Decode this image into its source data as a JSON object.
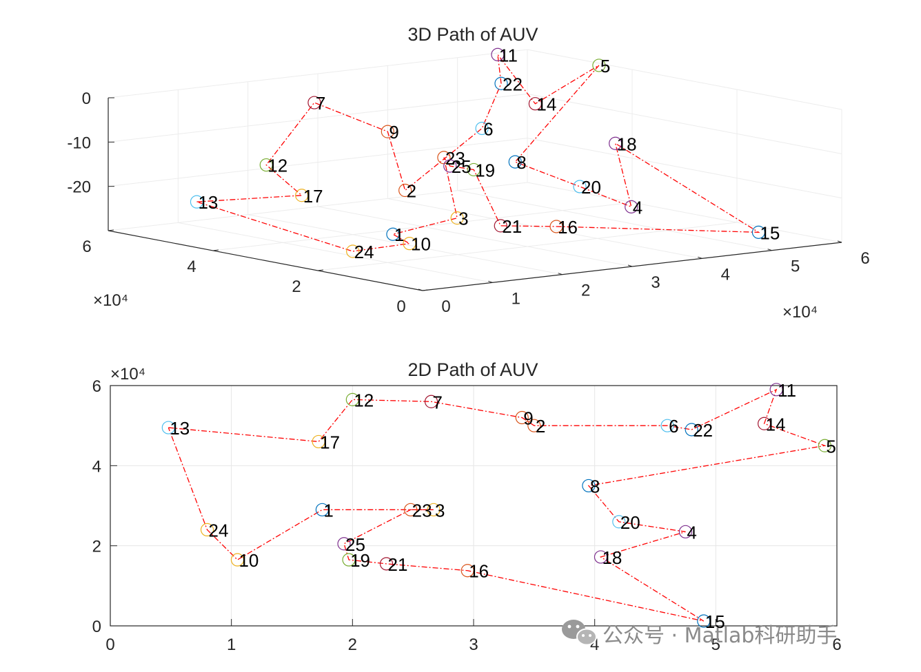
{
  "chart_data": [
    {
      "type": "scatter3d-path",
      "title": "3D Path of AUV",
      "x_exponent_label": "×10⁴",
      "y_exponent_label": "×10⁴",
      "xlim": [
        0,
        60000
      ],
      "ylim": [
        0,
        60000
      ],
      "zlim": [
        -30,
        0
      ],
      "x_ticks": [
        0,
        1,
        2,
        3,
        4,
        5,
        6
      ],
      "y_ticks": [
        0,
        2,
        4,
        6
      ],
      "z_ticks": [
        0,
        -10,
        -20
      ],
      "grid": true,
      "path_color": "#ff0000",
      "points": [
        {
          "label": "1",
          "z": -27
        },
        {
          "label": "2",
          "z": -25
        },
        {
          "label": "3",
          "z": -25
        },
        {
          "label": "4",
          "z": -25
        },
        {
          "label": "5",
          "z": 0
        },
        {
          "label": "6",
          "z": -13
        },
        {
          "label": "7",
          "z": -5
        },
        {
          "label": "8",
          "z": -16
        },
        {
          "label": "9",
          "z": -12
        },
        {
          "label": "10",
          "z": -25
        },
        {
          "label": "11",
          "z": 0
        },
        {
          "label": "12",
          "z": -18
        },
        {
          "label": "13",
          "z": -22
        },
        {
          "label": "14",
          "z": -9
        },
        {
          "label": "15",
          "z": -26
        },
        {
          "label": "16",
          "z": -24
        },
        {
          "label": "17",
          "z": -22
        },
        {
          "label": "18",
          "z": -8
        },
        {
          "label": "19",
          "z": -10
        },
        {
          "label": "20",
          "z": -20
        },
        {
          "label": "21",
          "z": -23
        },
        {
          "label": "22",
          "z": -3
        },
        {
          "label": "23",
          "z": -11
        },
        {
          "label": "24",
          "z": -28
        },
        {
          "label": "25",
          "z": -10
        }
      ]
    },
    {
      "type": "scatter-path",
      "title": "2D Path of AUV",
      "y_exponent_label": "×10⁴",
      "xlim": [
        0,
        6
      ],
      "ylim": [
        0,
        6
      ],
      "x_ticks": [
        0,
        1,
        2,
        3,
        4,
        5,
        6
      ],
      "y_ticks": [
        0,
        2,
        4,
        6
      ],
      "grid": true,
      "path_color": "#ff0000",
      "points": [
        {
          "label": "1",
          "x": 1.75,
          "y": 2.9
        },
        {
          "label": "2",
          "x": 3.5,
          "y": 5.0
        },
        {
          "label": "3",
          "x": 2.67,
          "y": 2.9
        },
        {
          "label": "4",
          "x": 4.75,
          "y": 2.35
        },
        {
          "label": "5",
          "x": 5.9,
          "y": 4.5
        },
        {
          "label": "6",
          "x": 4.6,
          "y": 5.0
        },
        {
          "label": "7",
          "x": 2.65,
          "y": 5.6
        },
        {
          "label": "8",
          "x": 3.95,
          "y": 3.5
        },
        {
          "label": "9",
          "x": 3.4,
          "y": 5.2
        },
        {
          "label": "10",
          "x": 1.05,
          "y": 1.65
        },
        {
          "label": "11",
          "x": 5.5,
          "y": 5.9
        },
        {
          "label": "12",
          "x": 2.0,
          "y": 5.65
        },
        {
          "label": "13",
          "x": 0.48,
          "y": 4.95
        },
        {
          "label": "14",
          "x": 5.4,
          "y": 5.05
        },
        {
          "label": "15",
          "x": 4.9,
          "y": 0.12
        },
        {
          "label": "16",
          "x": 2.95,
          "y": 1.38
        },
        {
          "label": "17",
          "x": 1.72,
          "y": 4.6
        },
        {
          "label": "18",
          "x": 4.05,
          "y": 1.72
        },
        {
          "label": "19",
          "x": 1.97,
          "y": 1.65
        },
        {
          "label": "20",
          "x": 4.2,
          "y": 2.6
        },
        {
          "label": "21",
          "x": 2.28,
          "y": 1.55
        },
        {
          "label": "22",
          "x": 4.8,
          "y": 4.9
        },
        {
          "label": "23",
          "x": 2.48,
          "y": 2.9
        },
        {
          "label": "24",
          "x": 0.8,
          "y": 2.4
        },
        {
          "label": "25",
          "x": 1.93,
          "y": 2.05
        }
      ],
      "path_order": [
        "13",
        "17",
        "12",
        "7",
        "9",
        "2",
        "6",
        "22",
        "11",
        "14",
        "5",
        "8",
        "20",
        "4",
        "18",
        "15",
        "16",
        "21",
        "19",
        "25",
        "23",
        "3",
        "1",
        "10",
        "24",
        "13"
      ]
    }
  ],
  "watermark": {
    "text": "公众号 · Matlab科研助手",
    "icon": "wechat-icon"
  }
}
